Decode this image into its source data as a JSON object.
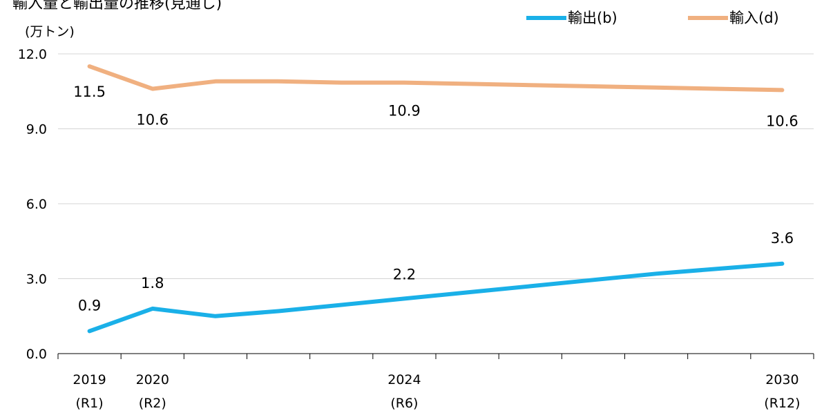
{
  "chart_data": {
    "type": "line",
    "title": "輸入量と輸出量の推移(見通し)",
    "ylabel": "(万トン)",
    "xlabel": "",
    "ylim": [
      0,
      12
    ],
    "yticks": [
      "0.0",
      "3.0",
      "6.0",
      "9.0",
      "12.0"
    ],
    "grid": true,
    "legend_position": "top-right",
    "x": [
      2019,
      2020,
      2021,
      2022,
      2023,
      2024,
      2025,
      2026,
      2027,
      2028,
      2029,
      2030
    ],
    "x_tick_labels": [
      {
        "year": "2019",
        "era": "(R1)",
        "index": 0
      },
      {
        "year": "2020",
        "era": "(R2)",
        "index": 1
      },
      {
        "year": "2024",
        "era": "(R6)",
        "index": 5
      },
      {
        "year": "2030",
        "era": "(R12)",
        "index": 11
      }
    ],
    "series": [
      {
        "name": "輸出(b)",
        "color": "#1ab0e8",
        "values": [
          0.9,
          1.8,
          1.5,
          1.7,
          1.95,
          2.2,
          2.45,
          2.7,
          2.95,
          3.2,
          3.4,
          3.6
        ],
        "labels": [
          {
            "index": 0,
            "text": "0.9"
          },
          {
            "index": 1,
            "text": "1.8"
          },
          {
            "index": 5,
            "text": "2.2"
          },
          {
            "index": 11,
            "text": "3.6"
          }
        ]
      },
      {
        "name": "輸入(d)",
        "color": "#f0b080",
        "values": [
          11.5,
          10.6,
          10.9,
          10.9,
          10.85,
          10.85,
          10.8,
          10.75,
          10.7,
          10.65,
          10.6,
          10.55
        ],
        "labels": [
          {
            "index": 0,
            "text": "11.5"
          },
          {
            "index": 1,
            "text": "10.6"
          },
          {
            "index": 5,
            "text": "10.9"
          },
          {
            "index": 11,
            "text": "10.6"
          }
        ]
      }
    ]
  }
}
